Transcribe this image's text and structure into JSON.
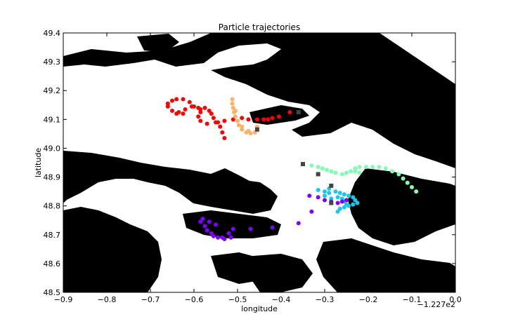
{
  "chart_data": {
    "type": "scatter",
    "title": "Particle trajectories",
    "xlabel": "longitude",
    "ylabel": "latitude",
    "x_offset_label": "−1.227e2",
    "xlim": [
      -0.9,
      0.0
    ],
    "ylim": [
      48.5,
      49.4
    ],
    "x_ticks": [
      -0.9,
      -0.8,
      -0.7,
      -0.6,
      -0.5,
      -0.4,
      -0.3,
      -0.2,
      -0.1,
      0.0
    ],
    "x_tick_labels": [
      "−0.9",
      "−0.8",
      "−0.7",
      "−0.6",
      "−0.5",
      "−0.4",
      "−0.3",
      "−0.2",
      "−0.1",
      "0.0"
    ],
    "y_ticks": [
      48.5,
      48.6,
      48.7,
      48.8,
      48.9,
      49.0,
      49.1,
      49.2,
      49.3,
      49.4
    ],
    "y_tick_labels": [
      "48.5",
      "48.6",
      "48.7",
      "48.8",
      "48.9",
      "49.0",
      "49.1",
      "49.2",
      "49.3",
      "49.4"
    ],
    "grid": false,
    "background": "land (black) / water (white) coastline map",
    "start_marker_color": "#444444",
    "start_markers": [
      [
        -0.36,
        49.125
      ],
      [
        -0.455,
        49.065
      ],
      [
        -0.35,
        48.945
      ],
      [
        -0.315,
        48.91
      ],
      [
        -0.285,
        48.87
      ],
      [
        -0.285,
        48.81
      ]
    ],
    "series": [
      {
        "color": "#ff0000",
        "points": [
          [
            -0.38,
            49.125
          ],
          [
            -0.405,
            49.11
          ],
          [
            -0.42,
            49.105
          ],
          [
            -0.43,
            49.1
          ],
          [
            -0.44,
            49.1
          ],
          [
            -0.455,
            49.1
          ],
          [
            -0.475,
            49.1
          ],
          [
            -0.49,
            49.105
          ],
          [
            -0.51,
            49.1
          ],
          [
            -0.53,
            49.095
          ],
          [
            -0.55,
            49.09
          ],
          [
            -0.57,
            49.085
          ],
          [
            -0.585,
            49.095
          ],
          [
            -0.59,
            49.11
          ],
          [
            -0.585,
            49.125
          ],
          [
            -0.59,
            49.14
          ],
          [
            -0.605,
            49.145
          ],
          [
            -0.62,
            49.135
          ],
          [
            -0.635,
            49.125
          ],
          [
            -0.65,
            49.13
          ],
          [
            -0.66,
            49.145
          ],
          [
            -0.66,
            49.155
          ],
          [
            -0.65,
            49.165
          ],
          [
            -0.64,
            49.17
          ],
          [
            -0.625,
            49.17
          ],
          [
            -0.61,
            49.16
          ],
          [
            -0.6,
            49.145
          ],
          [
            -0.585,
            49.135
          ],
          [
            -0.575,
            49.14
          ],
          [
            -0.565,
            49.13
          ],
          [
            -0.56,
            49.12
          ],
          [
            -0.555,
            49.105
          ],
          [
            -0.545,
            49.09
          ],
          [
            -0.54,
            49.075
          ],
          [
            -0.535,
            49.055
          ],
          [
            -0.53,
            49.035
          ],
          [
            -0.625,
            49.12
          ],
          [
            -0.64,
            49.12
          ]
        ]
      },
      {
        "color": "#ffb266",
        "points": [
          [
            -0.455,
            49.075
          ],
          [
            -0.46,
            49.055
          ],
          [
            -0.47,
            49.052
          ],
          [
            -0.48,
            49.055
          ],
          [
            -0.49,
            49.065
          ],
          [
            -0.497,
            49.08
          ],
          [
            -0.5,
            49.095
          ],
          [
            -0.505,
            49.11
          ],
          [
            -0.508,
            49.125
          ],
          [
            -0.51,
            49.14
          ],
          [
            -0.512,
            49.155
          ],
          [
            -0.512,
            49.17
          ],
          [
            -0.505,
            49.13
          ],
          [
            -0.49,
            49.075
          ],
          [
            -0.475,
            49.06
          ]
        ]
      },
      {
        "color": "#80ffb4",
        "points": [
          [
            -0.33,
            48.94
          ],
          [
            -0.315,
            48.935
          ],
          [
            -0.305,
            48.93
          ],
          [
            -0.295,
            48.925
          ],
          [
            -0.285,
            48.92
          ],
          [
            -0.275,
            48.915
          ],
          [
            -0.26,
            48.91
          ],
          [
            -0.25,
            48.915
          ],
          [
            -0.24,
            48.92
          ],
          [
            -0.23,
            48.92
          ],
          [
            -0.22,
            48.915
          ],
          [
            -0.23,
            48.93
          ],
          [
            -0.22,
            48.935
          ],
          [
            -0.205,
            48.935
          ],
          [
            -0.19,
            48.935
          ],
          [
            -0.175,
            48.935
          ],
          [
            -0.16,
            48.93
          ],
          [
            -0.145,
            48.92
          ],
          [
            -0.13,
            48.91
          ],
          [
            -0.12,
            48.895
          ],
          [
            -0.11,
            48.88
          ],
          [
            -0.1,
            48.865
          ],
          [
            -0.09,
            48.85
          ]
        ]
      },
      {
        "color": "#1ac7e8",
        "points": [
          [
            -0.315,
            48.855
          ],
          [
            -0.3,
            48.85
          ],
          [
            -0.29,
            48.845
          ],
          [
            -0.275,
            48.85
          ],
          [
            -0.265,
            48.845
          ],
          [
            -0.255,
            48.84
          ],
          [
            -0.245,
            48.835
          ],
          [
            -0.235,
            48.83
          ],
          [
            -0.23,
            48.82
          ],
          [
            -0.225,
            48.81
          ],
          [
            -0.235,
            48.805
          ],
          [
            -0.245,
            48.8
          ],
          [
            -0.255,
            48.795
          ],
          [
            -0.265,
            48.79
          ],
          [
            -0.27,
            48.78
          ],
          [
            -0.29,
            48.86
          ],
          [
            -0.3,
            48.835
          ],
          [
            -0.285,
            48.825
          ],
          [
            -0.27,
            48.83
          ],
          [
            -0.26,
            48.825
          ],
          [
            -0.255,
            48.815
          ],
          [
            -0.25,
            48.805
          ]
        ]
      },
      {
        "color": "#8000ff",
        "points": [
          [
            -0.335,
            48.835
          ],
          [
            -0.315,
            48.83
          ],
          [
            -0.3,
            48.82
          ],
          [
            -0.285,
            48.815
          ],
          [
            -0.27,
            48.81
          ],
          [
            -0.26,
            48.815
          ],
          [
            -0.25,
            48.82
          ],
          [
            -0.33,
            48.78
          ],
          [
            -0.36,
            48.74
          ],
          [
            -0.42,
            48.725
          ],
          [
            -0.47,
            48.72
          ],
          [
            -0.51,
            48.72
          ],
          [
            -0.52,
            48.705
          ],
          [
            -0.535,
            48.69
          ],
          [
            -0.545,
            48.69
          ],
          [
            -0.555,
            48.695
          ],
          [
            -0.56,
            48.705
          ],
          [
            -0.57,
            48.715
          ],
          [
            -0.575,
            48.73
          ],
          [
            -0.585,
            48.745
          ],
          [
            -0.58,
            48.755
          ],
          [
            -0.565,
            48.745
          ],
          [
            -0.55,
            48.735
          ],
          [
            -0.53,
            48.685
          ],
          [
            -0.515,
            48.69
          ]
        ]
      }
    ]
  }
}
